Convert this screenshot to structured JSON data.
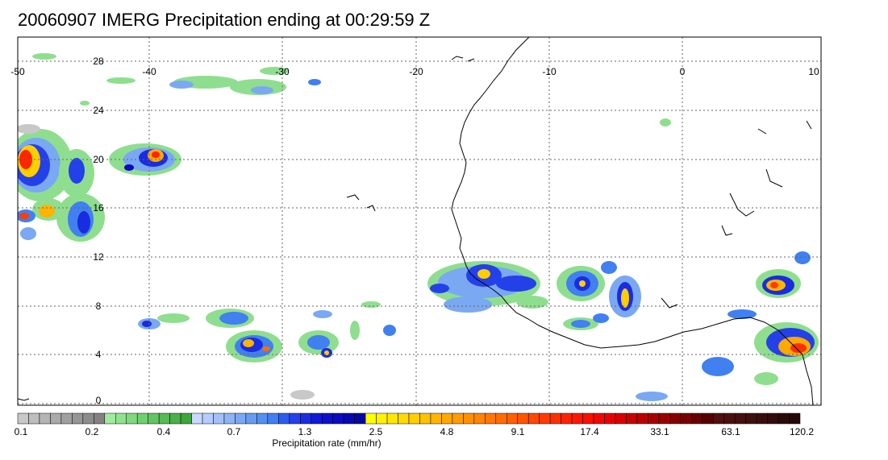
{
  "title": "20060907 IMERG Precipitation ending at 00:29:59 Z",
  "map": {
    "lon_range": [
      -50,
      10
    ],
    "lat_range": [
      -1,
      30
    ],
    "lon_labels": [
      "-50",
      "-40",
      "-30",
      "-20",
      "-10",
      "0",
      "10"
    ],
    "lat_labels": [
      "28",
      "24",
      "20",
      "16",
      "12",
      "8",
      "4",
      "0"
    ],
    "grid": "dotted",
    "colors": {
      "coast": "#000000",
      "grid": "#666666"
    }
  },
  "colorbar": {
    "label": "Precipitation rate (mm/hr)",
    "tick_labels": [
      "0.1",
      "0.2",
      "0.4",
      "0.7",
      "1.3",
      "2.5",
      "4.8",
      "9.1",
      "17.4",
      "33.1",
      "63.1",
      "120.2"
    ],
    "colors": [
      "#c8c8c8",
      "#bebebe",
      "#b4b4b4",
      "#aaaaaa",
      "#a0a0a0",
      "#969696",
      "#8c8c8c",
      "#828282",
      "#a0eba0",
      "#90e290",
      "#80d880",
      "#70cf70",
      "#62c562",
      "#55bb55",
      "#48b148",
      "#3ca73c",
      "#c8d8ff",
      "#b6ccff",
      "#a2c0fa",
      "#8eb4f5",
      "#7aa8f2",
      "#669cf0",
      "#5490f0",
      "#4080f0",
      "#2e5cf0",
      "#2440e8",
      "#1a2ce0",
      "#1218d6",
      "#0c10cc",
      "#0a0cbe",
      "#0808b0",
      "#0606a0",
      "#ffff00",
      "#fff200",
      "#ffe600",
      "#ffda00",
      "#ffce00",
      "#ffc200",
      "#ffb400",
      "#ffa800",
      "#ff9c00",
      "#ff9000",
      "#ff8400",
      "#ff7800",
      "#ff6c00",
      "#ff6000",
      "#ff5400",
      "#ff4800",
      "#ff3c00",
      "#ff3000",
      "#ff2400",
      "#ff1800",
      "#f81000",
      "#f00800",
      "#e80000",
      "#d80000",
      "#c80000",
      "#b80000",
      "#a80000",
      "#980000",
      "#880000",
      "#780000",
      "#680000",
      "#580000",
      "#501010",
      "#4a1010",
      "#441010",
      "#3e0f0f",
      "#380d0d",
      "#320b0b",
      "#2c0909",
      "#260707"
    ]
  }
}
